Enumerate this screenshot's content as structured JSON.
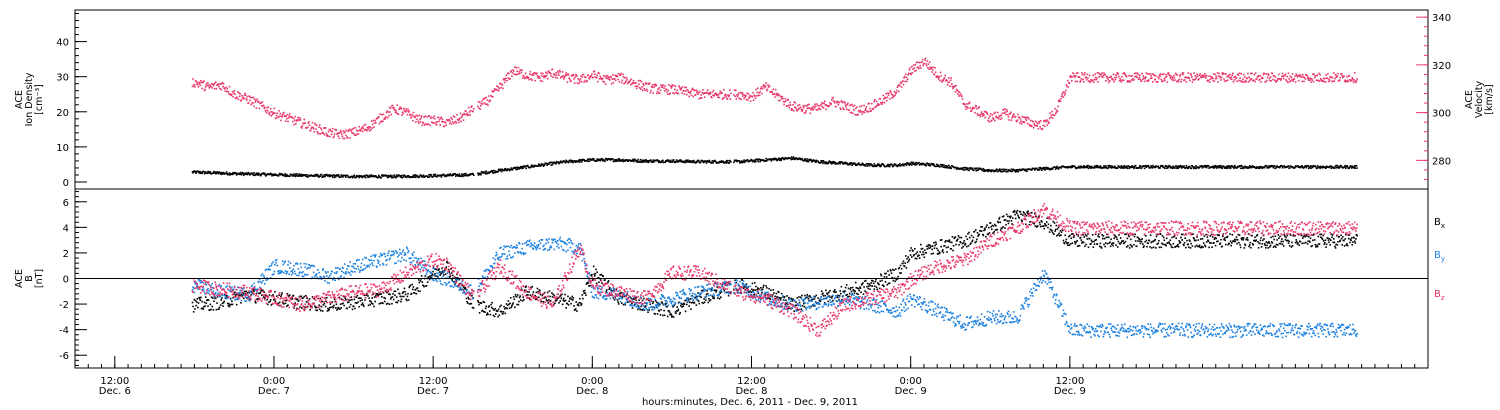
{
  "colors": {
    "density": "#000000",
    "velocity": "#e8386a",
    "bx": "#000000",
    "by": "#1a80e0",
    "bz": "#e8386a",
    "axis": "#000000"
  },
  "time_axis": {
    "title": "hours:minutes, Dec.  6, 2011 - Dec.  9, 2011",
    "range_hours": [
      -15,
      87
    ],
    "major_ticks": [
      {
        "t": -12,
        "time": "12:00",
        "day": "Dec. 6"
      },
      {
        "t": 0,
        "time": "0:00",
        "day": "Dec. 7"
      },
      {
        "t": 12,
        "time": "12:00",
        "day": "Dec. 7"
      },
      {
        "t": 24,
        "time": "0:00",
        "day": "Dec. 8"
      },
      {
        "t": 36,
        "time": "12:00",
        "day": "Dec. 8"
      },
      {
        "t": 48,
        "time": "0:00",
        "day": "Dec. 9"
      },
      {
        "t": 60,
        "time": "12:00",
        "day": "Dec. 9"
      }
    ],
    "data_gaps_hours": [
      [
        15.0,
        15.3
      ],
      [
        34.4,
        34.6
      ]
    ],
    "data_range_hours": [
      -6.2,
      81.6
    ]
  },
  "chart_data": [
    {
      "type": "scatter",
      "panel": "plasma",
      "left_axis": {
        "label_lines": [
          "ACE",
          "Ion Density",
          "[cm⁻³]"
        ],
        "range": [
          -2,
          49
        ],
        "ticks": [
          "0",
          "10",
          "20",
          "30",
          "40"
        ],
        "tick_values": [
          0,
          10,
          20,
          30,
          40
        ],
        "minor_step": 2
      },
      "right_axis": {
        "label_lines": [
          "ACE",
          "Velocity",
          "[km/s]"
        ],
        "range": [
          268,
          343
        ],
        "ticks": [
          "280",
          "300",
          "320",
          "340"
        ],
        "tick_values": [
          280,
          300,
          320,
          340
        ],
        "minor_step": 4
      },
      "series": [
        {
          "key": "density",
          "axis": "left",
          "x": [
            -6,
            -3,
            0,
            3,
            6,
            9,
            12,
            15,
            16,
            18,
            20,
            22,
            24,
            26,
            28,
            30,
            32,
            35,
            37,
            39,
            41,
            43,
            45,
            47,
            48,
            50,
            52,
            54,
            56,
            58,
            60
          ],
          "y": [
            3.0,
            2.6,
            2.3,
            2.0,
            1.8,
            1.8,
            2.0,
            2.3,
            3.0,
            4.0,
            5.0,
            6.0,
            6.5,
            6.5,
            6.2,
            6.2,
            6.0,
            6.0,
            6.5,
            7.0,
            6.0,
            5.5,
            5.0,
            5.0,
            5.5,
            5.0,
            4.0,
            3.5,
            3.5,
            4.0,
            4.5
          ]
        },
        {
          "key": "velocity",
          "axis": "right",
          "x": [
            -6,
            -5,
            -4,
            -3,
            -2,
            -1,
            0,
            1,
            2,
            3,
            4,
            5,
            6,
            7,
            8,
            9,
            10,
            11,
            12,
            13,
            14,
            15,
            16,
            17,
            18,
            19,
            20,
            21,
            22,
            23,
            24,
            25,
            26,
            27,
            28,
            29,
            30,
            31,
            32,
            33,
            35,
            36,
            37,
            38,
            39,
            40,
            41,
            42,
            43,
            44,
            45,
            46,
            47,
            48,
            49,
            50,
            51,
            52,
            53,
            54,
            55,
            56,
            57,
            58,
            59,
            60
          ],
          "y": [
            313,
            311,
            312,
            308,
            306,
            303,
            300,
            298,
            296,
            294,
            292,
            291,
            292,
            294,
            298,
            302,
            300,
            297,
            297,
            296,
            298,
            302,
            305,
            311,
            318,
            316,
            315,
            317,
            315,
            314,
            316,
            314,
            315,
            313,
            311,
            310,
            310,
            309,
            308,
            308,
            308,
            307,
            311,
            307,
            303,
            302,
            302,
            305,
            303,
            301,
            303,
            306,
            310,
            318,
            322,
            316,
            313,
            304,
            301,
            298,
            300,
            298,
            296,
            295,
            302,
            315
          ]
        }
      ]
    },
    {
      "type": "scatter",
      "panel": "magnetic",
      "left_axis": {
        "label_lines": [
          "ACE",
          "B",
          "[nT]"
        ],
        "range": [
          -7,
          7
        ],
        "ticks": [
          "-6",
          "-4",
          "-2",
          "0",
          "2",
          "4",
          "6"
        ],
        "tick_values": [
          -6,
          -4,
          -2,
          0,
          2,
          4,
          6
        ],
        "minor_step": 0.4
      },
      "zero_line": 0,
      "series": [
        {
          "key": "bx",
          "name": "B",
          "sub": "x",
          "x": [
            -6,
            -4,
            -2,
            0,
            2,
            4,
            6,
            8,
            10,
            12,
            13,
            15,
            17,
            19,
            21,
            23,
            24,
            26,
            28,
            30,
            32,
            35,
            37,
            39,
            41,
            43,
            45,
            47,
            48,
            50,
            52,
            54,
            56,
            58,
            60
          ],
          "y": [
            -2.0,
            -1.8,
            -1.2,
            -1.5,
            -1.8,
            -2.0,
            -1.8,
            -1.5,
            -1.2,
            0.5,
            1.0,
            -2.0,
            -2.5,
            -1.0,
            -1.5,
            -2.0,
            0.5,
            -1.5,
            -2.0,
            -2.5,
            -1.5,
            -0.5,
            -1.0,
            -2.0,
            -1.5,
            -1.0,
            -0.5,
            0.5,
            2.0,
            2.5,
            3.0,
            4.0,
            5.0,
            4.5,
            3.0
          ]
        },
        {
          "key": "by",
          "name": "B",
          "sub": "y",
          "x": [
            -6,
            -4,
            -2,
            0,
            2,
            4,
            6,
            8,
            10,
            12,
            13,
            15,
            17,
            19,
            21,
            23,
            24,
            26,
            28,
            30,
            32,
            35,
            37,
            39,
            41,
            43,
            45,
            47,
            48,
            50,
            52,
            54,
            56,
            58,
            60
          ],
          "y": [
            -0.5,
            -1.0,
            -1.2,
            1.0,
            0.8,
            0.2,
            1.0,
            1.5,
            2.0,
            0.3,
            0.0,
            -1.0,
            2.0,
            2.5,
            2.8,
            2.5,
            -1.0,
            -1.2,
            -2.0,
            -1.5,
            -1.0,
            -0.5,
            -1.5,
            -2.0,
            -1.8,
            -1.5,
            -2.0,
            -2.5,
            -1.5,
            -2.5,
            -3.5,
            -3.0,
            -3.0,
            0.5,
            -4.0
          ]
        },
        {
          "key": "bz",
          "name": "B",
          "sub": "z",
          "x": [
            -6,
            -4,
            -2,
            0,
            2,
            4,
            6,
            8,
            10,
            12,
            13,
            15,
            17,
            19,
            21,
            23,
            24,
            26,
            28,
            30,
            32,
            35,
            37,
            39,
            41,
            43,
            45,
            47,
            48,
            50,
            52,
            54,
            56,
            58,
            60
          ],
          "y": [
            -0.5,
            -0.8,
            -1.0,
            -1.5,
            -2.0,
            -1.5,
            -1.0,
            -0.8,
            0.5,
            1.5,
            1.2,
            -1.5,
            1.0,
            -1.0,
            -2.0,
            2.5,
            -0.5,
            -1.0,
            -1.5,
            0.5,
            0.5,
            -1.0,
            -1.5,
            -2.5,
            -4.0,
            -2.0,
            -1.5,
            -1.0,
            0.0,
            1.0,
            1.5,
            3.0,
            4.0,
            5.5,
            4.0
          ]
        }
      ]
    }
  ]
}
